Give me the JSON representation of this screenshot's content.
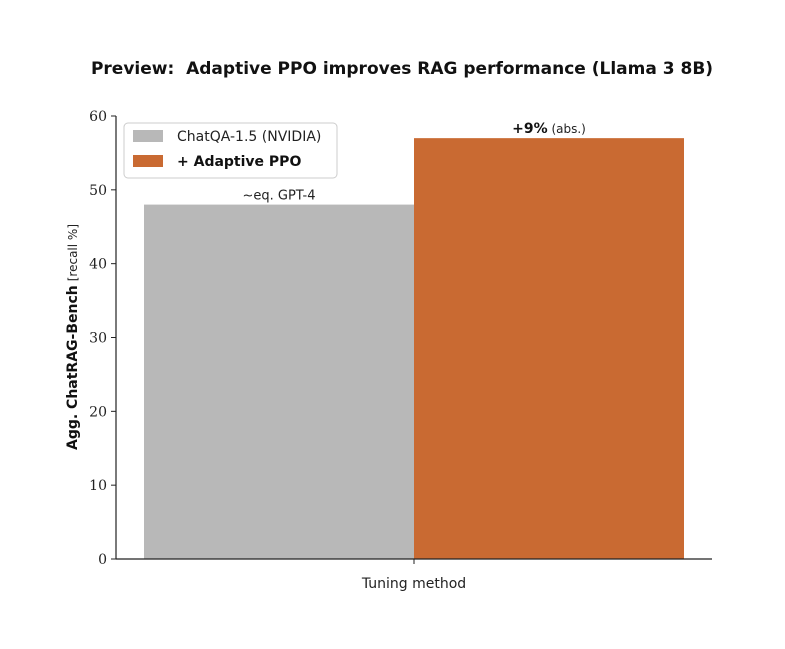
{
  "chart_data": {
    "type": "bar",
    "title": "Preview:  Adaptive PPO improves RAG performance (Llama 3 8B)",
    "xlabel": "Tuning method",
    "ylabel_main": "Agg. ChatRAG-Bench",
    "ylabel_unit": "[recall %]",
    "ylim": [
      0,
      60
    ],
    "yticks": [
      0,
      10,
      20,
      30,
      40,
      50,
      60
    ],
    "grid": false,
    "legend_position": "top-left",
    "series": [
      {
        "name": "ChatQA-1.5 (NVIDIA)",
        "value": 48,
        "color": "#b8b8b8",
        "annotation": "~eq. GPT-4"
      },
      {
        "name": "+ Adaptive PPO",
        "value": 57,
        "color": "#c96a32",
        "annotation_bold": "+9%",
        "annotation_rest": " (abs.)"
      }
    ]
  }
}
